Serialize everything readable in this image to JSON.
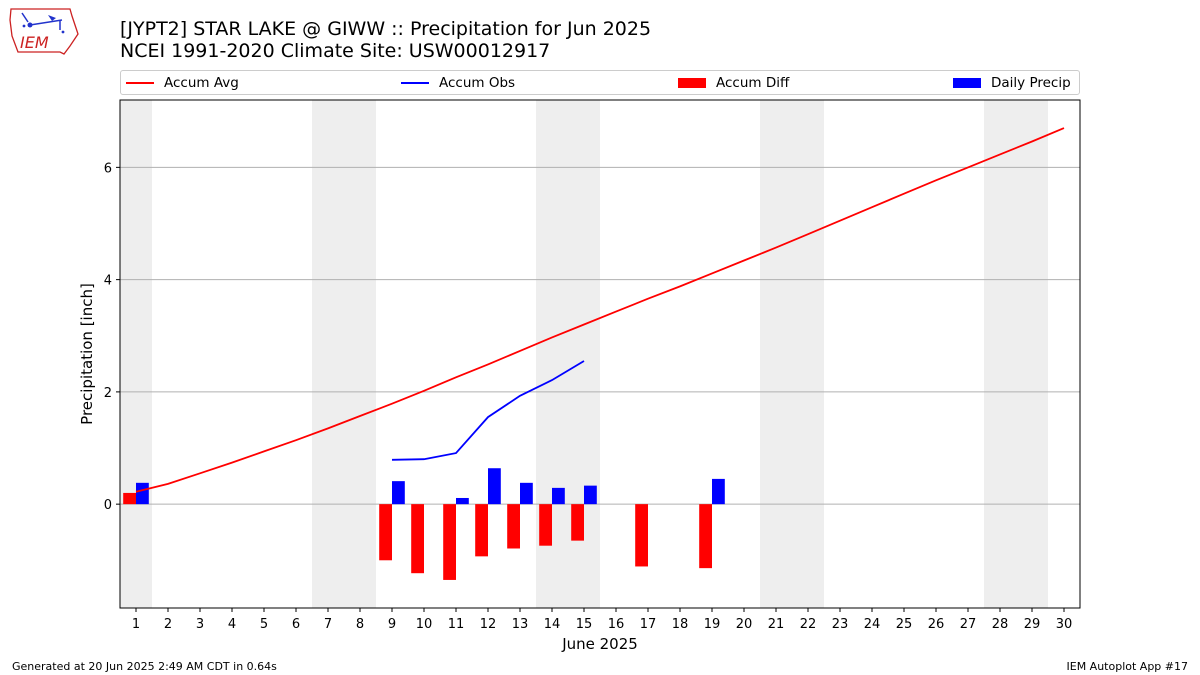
{
  "logo_text": "IEM",
  "title_line1": "[JYPT2] STAR LAKE @ GIWW :: Precipitation for Jun 2025",
  "title_line2": "NCEI 1991-2020 Climate Site: USW00012917",
  "footer_left": "Generated at 20 Jun 2025 2:49 AM CDT in 0.64s",
  "footer_right": "IEM Autoplot App #17",
  "colors": {
    "avg": "#ff0000",
    "obs": "#0000ff",
    "diff": "#ff0000",
    "daily": "#0000ff",
    "weekend": "#eeeeee",
    "grid": "#b0b0b0"
  },
  "chart_data": {
    "type": "bar",
    "xlabel": "June 2025",
    "ylabel": "Precipitation [inch]",
    "xlim": [
      0.5,
      30.5
    ],
    "ylim": [
      -1.85,
      7.2
    ],
    "x_ticks": [
      1,
      2,
      3,
      4,
      5,
      6,
      7,
      8,
      9,
      10,
      11,
      12,
      13,
      14,
      15,
      16,
      17,
      18,
      19,
      20,
      21,
      22,
      23,
      24,
      25,
      26,
      27,
      28,
      29,
      30
    ],
    "y_ticks": [
      0,
      2,
      4,
      6
    ],
    "grid": true,
    "weekend_shading": [
      1,
      7,
      8,
      14,
      15,
      21,
      22,
      28,
      29
    ],
    "legend": {
      "placement": "top",
      "entries": [
        "Accum Avg",
        "Accum Obs",
        "Accum Diff",
        "Daily Precip"
      ]
    },
    "series": [
      {
        "name": "Accum Avg",
        "type": "line",
        "x": [
          1,
          2,
          3,
          4,
          5,
          6,
          7,
          8,
          9,
          10,
          11,
          12,
          13,
          14,
          15,
          16,
          17,
          18,
          19,
          20,
          21,
          22,
          23,
          24,
          25,
          26,
          27,
          28,
          29,
          30
        ],
        "values": [
          0.22,
          0.36,
          0.55,
          0.74,
          0.94,
          1.14,
          1.35,
          1.57,
          1.79,
          2.02,
          2.26,
          2.49,
          2.73,
          2.97,
          3.2,
          3.43,
          3.66,
          3.88,
          4.11,
          4.34,
          4.57,
          4.81,
          5.05,
          5.29,
          5.53,
          5.77,
          6.0,
          6.23,
          6.46,
          6.7
        ]
      },
      {
        "name": "Accum Obs",
        "type": "line",
        "x": [
          9,
          10,
          11,
          12,
          13,
          14,
          15
        ],
        "values": [
          0.79,
          0.8,
          0.91,
          1.55,
          1.93,
          2.21,
          2.55
        ]
      },
      {
        "name": "Accum Diff",
        "type": "bar",
        "x": [
          1,
          9,
          10,
          11,
          12,
          13,
          14,
          15,
          17,
          19
        ],
        "values": [
          0.2,
          -1.0,
          -1.23,
          -1.35,
          -0.93,
          -0.79,
          -0.74,
          -0.65,
          -1.11,
          -1.14
        ]
      },
      {
        "name": "Daily Precip",
        "type": "bar",
        "x": [
          1,
          9,
          11,
          12,
          13,
          14,
          15,
          19
        ],
        "values": [
          0.38,
          0.41,
          0.11,
          0.64,
          0.38,
          0.29,
          0.33,
          0.45
        ]
      }
    ]
  }
}
